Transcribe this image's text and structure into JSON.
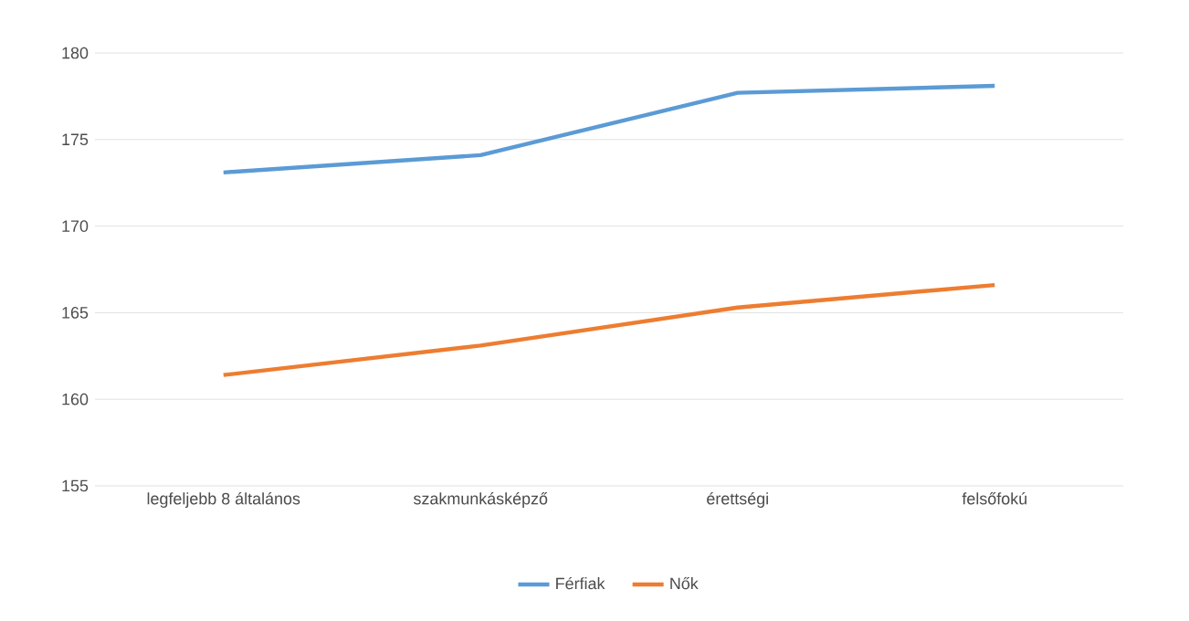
{
  "chart_data": {
    "type": "line",
    "categories": [
      "legfeljebb 8 általános",
      "szakmunkásképző",
      "érettségi",
      "felsőfokú"
    ],
    "series": [
      {
        "name": "Férfiak",
        "color": "#5b9bd5",
        "values": [
          173.1,
          174.1,
          177.7,
          178.1
        ]
      },
      {
        "name": "Nők",
        "color": "#ed7d31",
        "values": [
          161.4,
          163.1,
          165.3,
          166.6
        ]
      }
    ],
    "ylim": [
      155,
      180
    ],
    "yticks": [
      155,
      160,
      165,
      170,
      175,
      180
    ],
    "grid": "y",
    "legend": "bottom",
    "marker": "none",
    "line_style": "solid"
  }
}
